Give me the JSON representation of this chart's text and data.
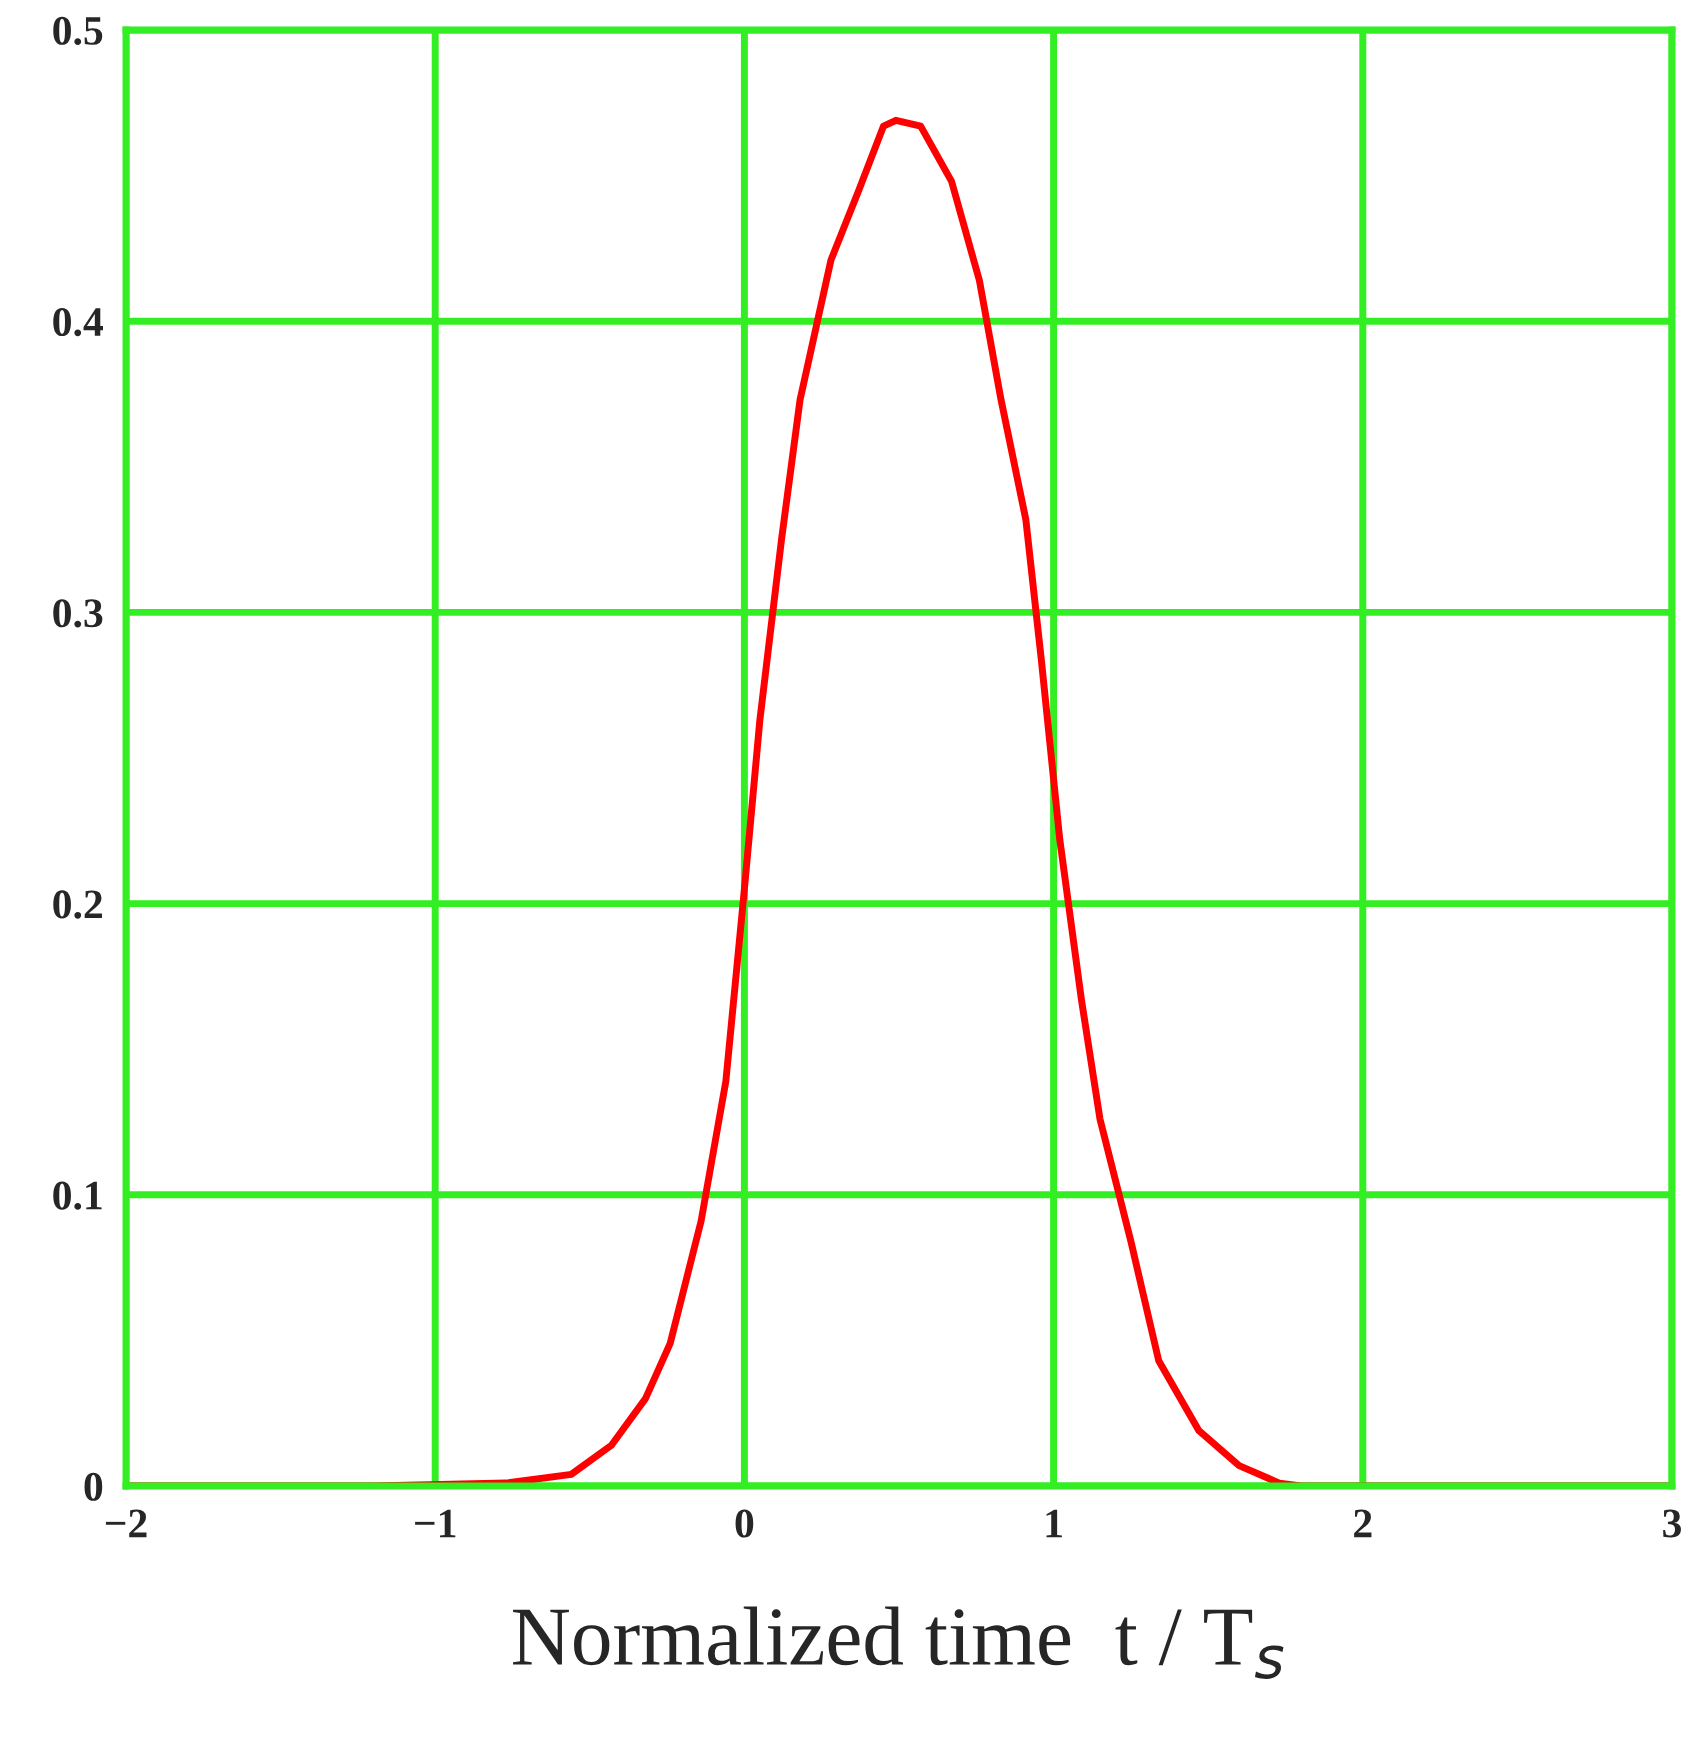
{
  "chart_data": {
    "type": "line",
    "xlabel": "Normalized time  t / T$_{s}$",
    "x": [
      -2,
      -1.2,
      -0.77,
      -0.56,
      -0.43,
      -0.32,
      -0.24,
      -0.14,
      -0.06,
      0,
      0.05,
      0.12,
      0.18,
      0.28,
      0.37,
      0.45,
      0.49,
      0.57,
      0.67,
      0.76,
      0.83,
      0.91,
      0.96,
      1.02,
      1.09,
      1.15,
      1.25,
      1.34,
      1.47,
      1.6,
      1.73,
      1.8,
      3
    ],
    "series": [
      {
        "color": "#ff0000",
        "values": [
          0,
          0,
          0.001,
          0.004,
          0.014,
          0.03,
          0.049,
          0.091,
          0.139,
          0.205,
          0.263,
          0.325,
          0.373,
          0.421,
          0.445,
          0.467,
          0.469,
          0.467,
          0.448,
          0.414,
          0.373,
          0.332,
          0.284,
          0.222,
          0.167,
          0.126,
          0.084,
          0.043,
          0.019,
          0.007,
          0.001,
          0,
          0
        ]
      }
    ],
    "xlim": [
      -2,
      3
    ],
    "ylim": [
      0,
      0.5
    ],
    "xticks": [
      {
        "value": -2,
        "label": "−2"
      },
      {
        "value": -1,
        "label": "−1"
      },
      0,
      1,
      2,
      3
    ],
    "yticks": [
      0,
      0.1,
      0.2,
      0.3,
      0.4,
      0.5
    ],
    "grid": true,
    "marker": "none",
    "line_style": "solid"
  }
}
